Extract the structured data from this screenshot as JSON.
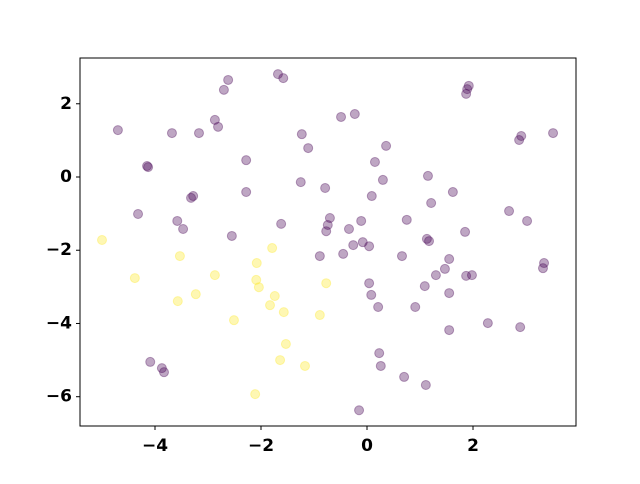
{
  "chart_data": {
    "type": "scatter",
    "xlim": [
      -5.415,
      3.943
    ],
    "ylim": [
      -6.8,
      3.25
    ],
    "xticks": [
      {
        "value": -4,
        "label": "−4"
      },
      {
        "value": -2,
        "label": "−2"
      },
      0,
      2
    ],
    "yticks": [
      {
        "value": -6,
        "label": "−6"
      },
      {
        "value": -4,
        "label": "−4"
      },
      {
        "value": -2,
        "label": "−2"
      },
      0,
      2
    ],
    "alpha": 0.35,
    "series": [
      {
        "color": "#440154",
        "x": [
          -4.7,
          -4.13,
          -4.15,
          -3.68,
          -3.17,
          -2.87,
          -2.81,
          -2.7,
          -2.62,
          -1.68,
          -1.58,
          -1.23,
          -1.11,
          -2.28,
          -2.28,
          -1.25,
          -0.79,
          -0.49,
          -0.23,
          0.15,
          0.36,
          0.3,
          0.09,
          1.15,
          1.21,
          1.62,
          1.87,
          1.92,
          1.89,
          2.87,
          2.91,
          3.51,
          -4.32,
          -3.58,
          -3.47,
          -3.28,
          -3.32,
          -2.55,
          -1.62,
          -0.7,
          -0.74,
          -0.77,
          -0.89,
          -0.45,
          -0.34,
          -0.26,
          -0.11,
          -0.08,
          0.04,
          0.66,
          0.75,
          1.13,
          1.17,
          1.47,
          1.3,
          1.55,
          1.85,
          1.87,
          1.98,
          2.68,
          3.02,
          3.34,
          3.32,
          0.04,
          0.08,
          0.21,
          0.91,
          1.09,
          1.55,
          1.55,
          2.28,
          2.89,
          0.23,
          0.26,
          0.7,
          1.11,
          -0.15,
          -4.09,
          -3.87,
          -3.83
        ],
        "y": [
          1.28,
          0.27,
          0.3,
          1.2,
          1.2,
          1.56,
          1.37,
          2.38,
          2.65,
          2.81,
          2.7,
          1.17,
          0.79,
          0.46,
          -0.41,
          -0.14,
          -0.3,
          1.64,
          1.72,
          0.41,
          0.85,
          -0.08,
          -0.52,
          0.03,
          -0.71,
          -0.41,
          2.27,
          2.49,
          2.4,
          1.01,
          1.12,
          1.2,
          -1.01,
          -1.2,
          -1.42,
          -0.52,
          -0.57,
          -1.61,
          -1.28,
          -1.12,
          -1.31,
          -1.48,
          -2.16,
          -2.1,
          -1.42,
          -1.86,
          -1.2,
          -1.78,
          -1.89,
          -2.16,
          -1.17,
          -1.69,
          -1.75,
          -2.51,
          -2.68,
          -2.24,
          -1.5,
          -2.7,
          -2.68,
          -0.93,
          -1.2,
          -2.35,
          -2.49,
          -2.9,
          -3.22,
          -3.55,
          -3.55,
          -2.98,
          -3.17,
          -4.18,
          -3.99,
          -4.1,
          -4.81,
          -5.16,
          -5.46,
          -5.68,
          -6.37,
          -5.05,
          -5.22,
          -5.33
        ]
      },
      {
        "color": "#fde725",
        "x": [
          -5.0,
          -4.38,
          -3.53,
          -3.57,
          -3.23,
          -2.87,
          -2.51,
          -2.08,
          -2.09,
          -2.04,
          -1.79,
          -1.74,
          -1.83,
          -1.57,
          -1.64,
          -1.53,
          -1.17,
          -2.11,
          -0.89,
          -0.77
        ],
        "y": [
          -1.72,
          -2.76,
          -2.16,
          -3.39,
          -3.2,
          -2.68,
          -3.91,
          -2.35,
          -2.81,
          -3.01,
          -1.94,
          -3.25,
          -3.5,
          -3.69,
          -5.0,
          -4.56,
          -5.16,
          -5.93,
          -3.77,
          -2.9
        ]
      }
    ]
  }
}
